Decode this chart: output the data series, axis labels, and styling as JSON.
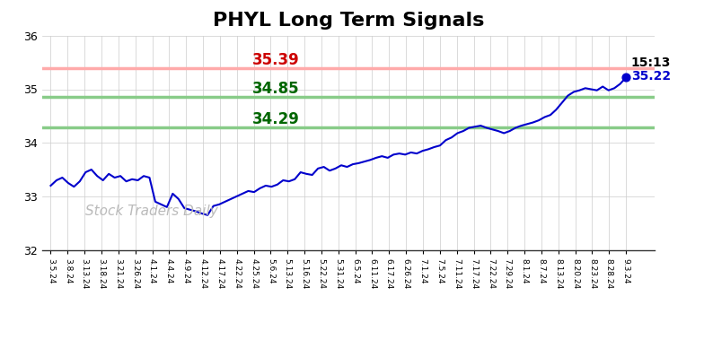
{
  "title": "PHYL Long Term Signals",
  "title_fontsize": 16,
  "title_fontweight": "bold",
  "ylim": [
    32,
    36
  ],
  "yticks": [
    32,
    33,
    34,
    35,
    36
  ],
  "background_color": "#ffffff",
  "grid_color": "#cccccc",
  "line_color": "#0000cc",
  "line_width": 1.5,
  "hline_red": 35.39,
  "hline_green1": 34.85,
  "hline_green2": 34.29,
  "hline_red_color": "#ffaaaa",
  "hline_green1_color": "#88cc88",
  "hline_green2_color": "#88cc88",
  "hline_red_label_color": "#cc0000",
  "hline_green_label_color": "#006600",
  "hline_linewidth": 2.5,
  "annotation_fontsize": 12,
  "annotation_fontweight": "bold",
  "last_price": 35.22,
  "last_time": "15:13",
  "last_price_color": "#0000cc",
  "last_time_color": "#000000",
  "watermark": "Stock Traders Daily",
  "watermark_color": "#bbbbbb",
  "watermark_fontsize": 11,
  "x_labels": [
    "3.5.24",
    "3.8.24",
    "3.13.24",
    "3.18.24",
    "3.21.24",
    "3.26.24",
    "4.1.24",
    "4.4.24",
    "4.9.24",
    "4.12.24",
    "4.17.24",
    "4.22.24",
    "4.25.24",
    "5.6.24",
    "5.13.24",
    "5.16.24",
    "5.22.24",
    "5.31.24",
    "6.5.24",
    "6.11.24",
    "6.17.24",
    "6.26.24",
    "7.1.24",
    "7.5.24",
    "7.11.24",
    "7.17.24",
    "7.22.24",
    "7.29.24",
    "8.1.24",
    "8.7.24",
    "8.13.24",
    "8.20.24",
    "8.23.24",
    "8.28.24",
    "9.3.24"
  ],
  "y_values": [
    33.2,
    33.3,
    33.35,
    33.25,
    33.18,
    33.28,
    33.45,
    33.5,
    33.38,
    33.3,
    33.42,
    33.35,
    33.38,
    33.28,
    33.32,
    33.3,
    33.38,
    33.35,
    32.9,
    32.85,
    32.8,
    33.05,
    32.95,
    32.78,
    32.75,
    32.72,
    32.68,
    32.65,
    32.82,
    32.85,
    32.9,
    32.95,
    33.0,
    33.05,
    33.1,
    33.08,
    33.15,
    33.2,
    33.18,
    33.22,
    33.3,
    33.28,
    33.32,
    33.45,
    33.42,
    33.4,
    33.52,
    33.55,
    33.48,
    33.52,
    33.58,
    33.55,
    33.6,
    33.62,
    33.65,
    33.68,
    33.72,
    33.75,
    33.72,
    33.78,
    33.8,
    33.78,
    33.82,
    33.8,
    33.85,
    33.88,
    33.92,
    33.95,
    34.05,
    34.1,
    34.18,
    34.22,
    34.28,
    34.3,
    34.32,
    34.28,
    34.25,
    34.22,
    34.18,
    34.22,
    34.28,
    34.32,
    34.35,
    34.38,
    34.42,
    34.48,
    34.52,
    34.62,
    34.75,
    34.88,
    34.95,
    34.98,
    35.02,
    35.0,
    34.98,
    35.05,
    34.98,
    35.02,
    35.1,
    35.22
  ]
}
